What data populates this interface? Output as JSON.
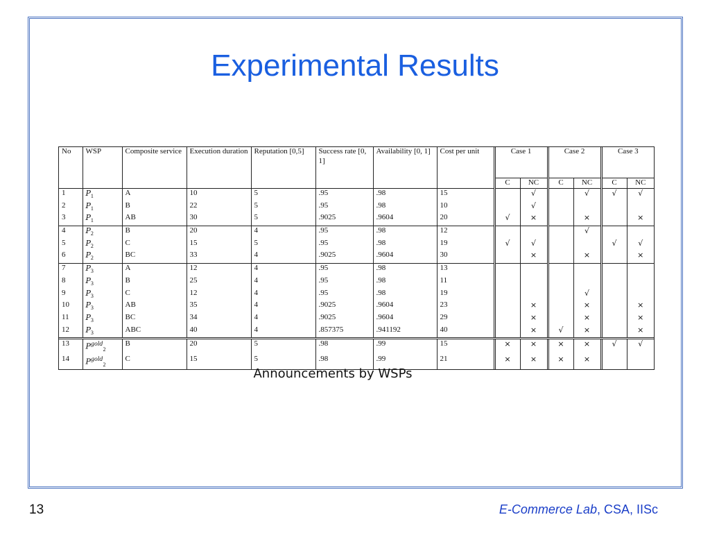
{
  "slide": {
    "title": "Experimental Results",
    "caption": "Announcements by WSPs",
    "page_number": "13",
    "footer_lab": "E-Commerce Lab",
    "footer_rest": ", CSA, IISc"
  },
  "table": {
    "headers": {
      "no": "No",
      "wsp": "WSP",
      "composite_service": "Composite service",
      "execution_duration": "Execution duration",
      "reputation": "Reputation [0,5]",
      "success_rate": "Success rate [0, 1]",
      "availability": "Availability [0, 1]",
      "cost": "Cost per unit",
      "case1": "Case 1",
      "case2": "Case 2",
      "case3": "Case 3",
      "c": "C",
      "nc": "NC"
    },
    "symbols": {
      "check": "√",
      "cross": "×"
    },
    "groups": [
      [
        {
          "no": "1",
          "wsp_base": "P",
          "wsp_sub": "1",
          "wsp_sup": "",
          "service": "A",
          "duration": "10",
          "reputation": "5",
          "success": ".95",
          "availability": ".98",
          "cost": "15",
          "cases": [
            "",
            "check",
            "",
            "check",
            "check",
            "check"
          ]
        },
        {
          "no": "2",
          "wsp_base": "P",
          "wsp_sub": "1",
          "wsp_sup": "",
          "service": "B",
          "duration": "22",
          "reputation": "5",
          "success": ".95",
          "availability": ".98",
          "cost": "10",
          "cases": [
            "",
            "check",
            "",
            "",
            "",
            ""
          ]
        },
        {
          "no": "3",
          "wsp_base": "P",
          "wsp_sub": "1",
          "wsp_sup": "",
          "service": "AB",
          "duration": "30",
          "reputation": "5",
          "success": ".9025",
          "availability": ".9604",
          "cost": "20",
          "cases": [
            "check",
            "cross",
            "",
            "cross",
            "",
            "cross"
          ]
        }
      ],
      [
        {
          "no": "4",
          "wsp_base": "P",
          "wsp_sub": "2",
          "wsp_sup": "",
          "service": "B",
          "duration": "20",
          "reputation": "4",
          "success": ".95",
          "availability": ".98",
          "cost": "12",
          "cases": [
            "",
            "",
            "",
            "check",
            "",
            ""
          ]
        },
        {
          "no": "5",
          "wsp_base": "P",
          "wsp_sub": "2",
          "wsp_sup": "",
          "service": "C",
          "duration": "15",
          "reputation": "5",
          "success": ".95",
          "availability": ".98",
          "cost": "19",
          "cases": [
            "check",
            "check",
            "",
            "",
            "check",
            "check"
          ]
        },
        {
          "no": "6",
          "wsp_base": "P",
          "wsp_sub": "2",
          "wsp_sup": "",
          "service": "BC",
          "duration": "33",
          "reputation": "4",
          "success": ".9025",
          "availability": ".9604",
          "cost": "30",
          "cases": [
            "",
            "cross",
            "",
            "cross",
            "",
            "cross"
          ]
        }
      ],
      [
        {
          "no": "7",
          "wsp_base": "P",
          "wsp_sub": "3",
          "wsp_sup": "",
          "service": "A",
          "duration": "12",
          "reputation": "4",
          "success": ".95",
          "availability": ".98",
          "cost": "13",
          "cases": [
            "",
            "",
            "",
            "",
            "",
            ""
          ]
        },
        {
          "no": "8",
          "wsp_base": "P",
          "wsp_sub": "3",
          "wsp_sup": "",
          "service": "B",
          "duration": "25",
          "reputation": "4",
          "success": ".95",
          "availability": ".98",
          "cost": "11",
          "cases": [
            "",
            "",
            "",
            "",
            "",
            ""
          ]
        },
        {
          "no": "9",
          "wsp_base": "P",
          "wsp_sub": "3",
          "wsp_sup": "",
          "service": "C",
          "duration": "12",
          "reputation": "4",
          "success": ".95",
          "availability": ".98",
          "cost": "19",
          "cases": [
            "",
            "",
            "",
            "check",
            "",
            ""
          ]
        },
        {
          "no": "10",
          "wsp_base": "P",
          "wsp_sub": "3",
          "wsp_sup": "",
          "service": "AB",
          "duration": "35",
          "reputation": "4",
          "success": ".9025",
          "availability": ".9604",
          "cost": "23",
          "cases": [
            "",
            "cross",
            "",
            "cross",
            "",
            "cross"
          ]
        },
        {
          "no": "11",
          "wsp_base": "P",
          "wsp_sub": "3",
          "wsp_sup": "",
          "service": "BC",
          "duration": "34",
          "reputation": "4",
          "success": ".9025",
          "availability": ".9604",
          "cost": "29",
          "cases": [
            "",
            "cross",
            "",
            "cross",
            "",
            "cross"
          ]
        },
        {
          "no": "12",
          "wsp_base": "P",
          "wsp_sub": "3",
          "wsp_sup": "",
          "service": "ABC",
          "duration": "40",
          "reputation": "4",
          "success": ".857375",
          "availability": ".941192",
          "cost": "40",
          "cases": [
            "",
            "cross",
            "check",
            "cross",
            "",
            "cross"
          ]
        }
      ],
      [
        {
          "no": "13",
          "wsp_base": "P",
          "wsp_sub": "2",
          "wsp_sup": "gold",
          "service": "B",
          "duration": "20",
          "reputation": "5",
          "success": ".98",
          "availability": ".99",
          "cost": "15",
          "cases": [
            "cross",
            "cross",
            "cross",
            "cross",
            "check",
            "check"
          ]
        },
        {
          "no": "14",
          "wsp_base": "P",
          "wsp_sub": "2",
          "wsp_sup": "gold",
          "service": "C",
          "duration": "15",
          "reputation": "5",
          "success": ".98",
          "availability": ".99",
          "cost": "21",
          "cases": [
            "cross",
            "cross",
            "cross",
            "cross",
            "",
            ""
          ]
        }
      ]
    ]
  }
}
